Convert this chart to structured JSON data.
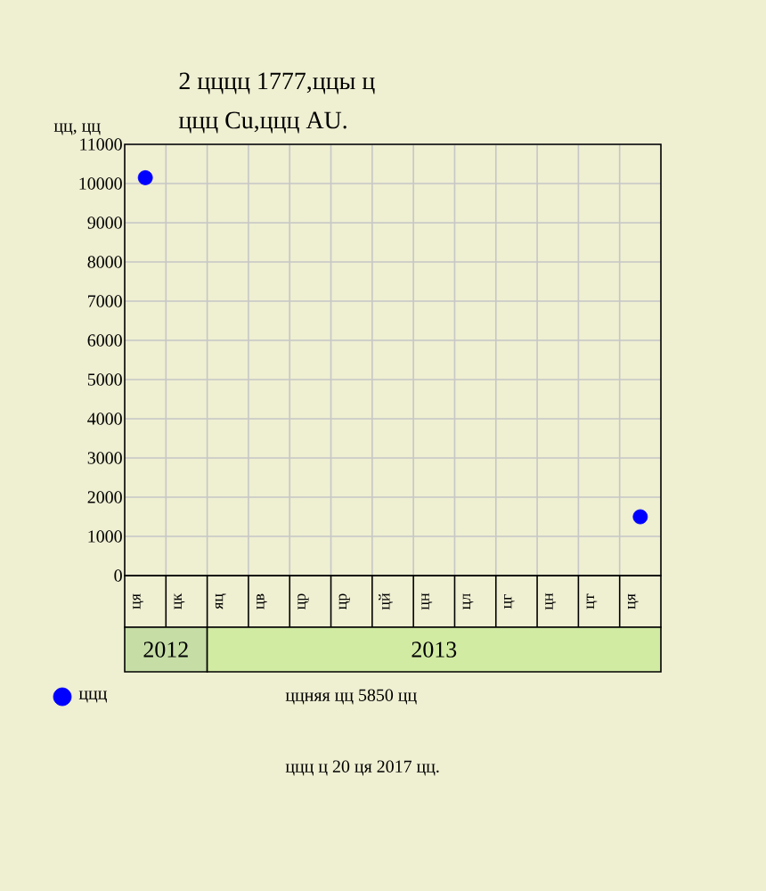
{
  "chart_data": {
    "type": "scatter",
    "title": "2 цццц 1777,ццы ц",
    "subtitle": "ццц Cu,ццц AU.",
    "ylabel": "цц, цц",
    "categories": [
      "ця",
      "цк",
      "яц",
      "цв",
      "цр",
      "цр",
      "цй",
      "цн",
      "цл",
      "цг",
      "цн",
      "цт",
      "ця"
    ],
    "series": [
      {
        "name": "ццц",
        "color": "#0000ff",
        "values": [
          10150,
          null,
          null,
          null,
          null,
          null,
          null,
          null,
          null,
          null,
          null,
          null,
          1500
        ]
      }
    ],
    "ylim": [
      0,
      11000
    ],
    "yticks": [
      0,
      1000,
      2000,
      3000,
      4000,
      5000,
      6000,
      7000,
      8000,
      9000,
      10000,
      11000
    ],
    "grid": true,
    "marker": "circle",
    "legend": "bottom left",
    "annotations": [
      "2012",
      "2013",
      "ццняя цц 5850 цц",
      "ццц ц 20 ця 2017 цц."
    ]
  }
}
